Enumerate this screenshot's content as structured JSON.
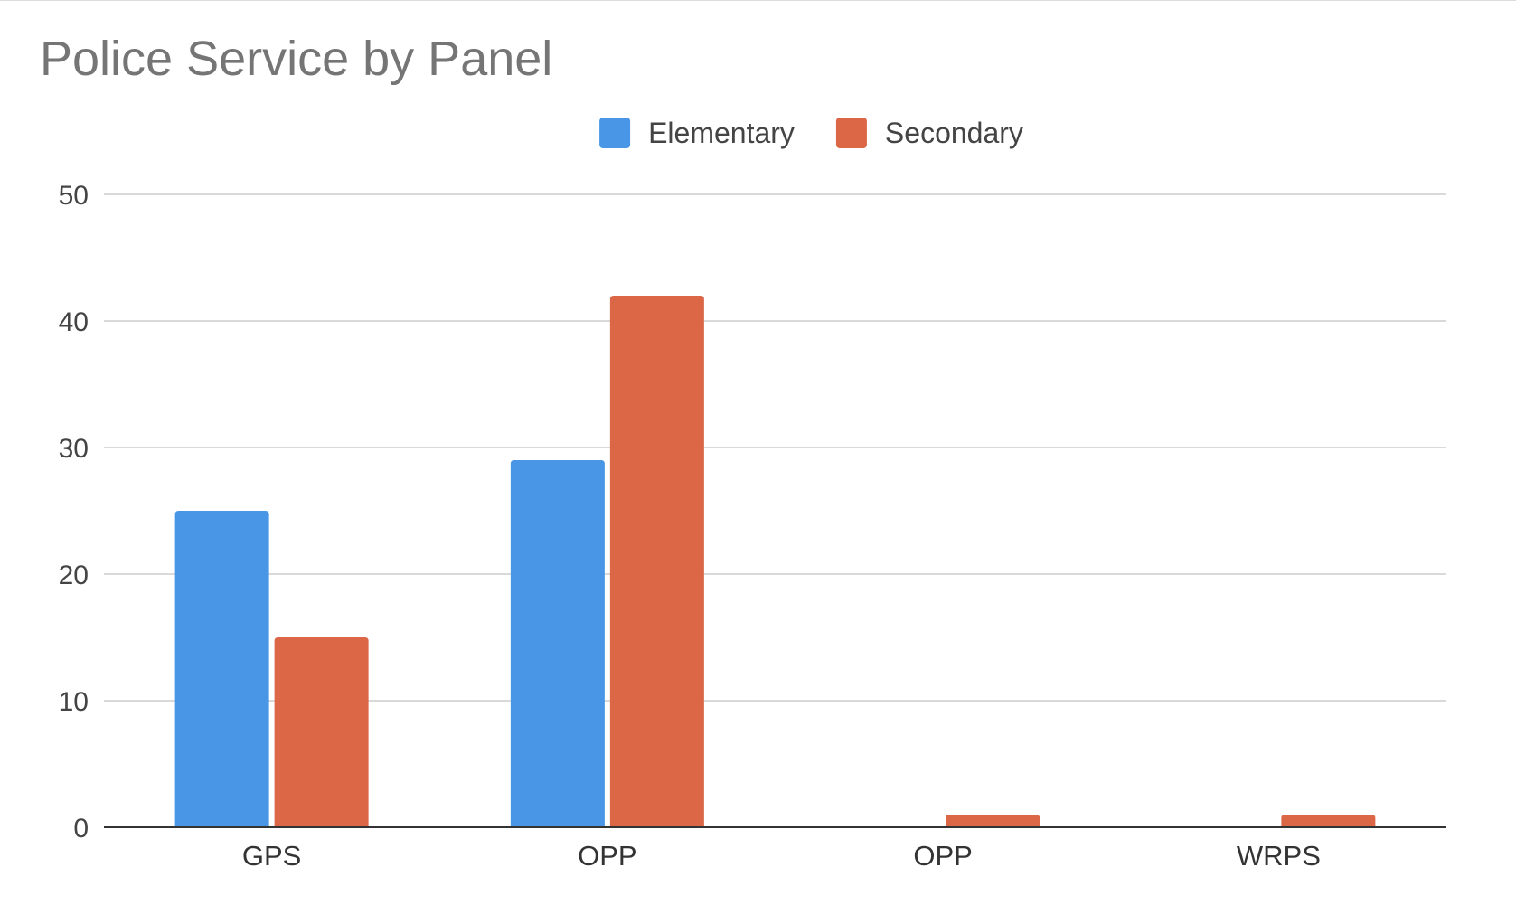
{
  "chart_data": {
    "type": "bar",
    "title": "Police Service by Panel",
    "xlabel": "",
    "ylabel": "",
    "categories": [
      "GPS",
      "OPP",
      "OPP",
      "WRPS"
    ],
    "series": [
      {
        "name": "Elementary",
        "color": "#4a96e6",
        "values": [
          25,
          29,
          0,
          0
        ]
      },
      {
        "name": "Secondary",
        "color": "#db6747",
        "values": [
          15,
          42,
          1,
          1
        ]
      }
    ],
    "ylim": [
      0,
      50
    ],
    "yticks": [
      0,
      10,
      20,
      30,
      40,
      50
    ],
    "grid": true,
    "legend_position": "top-center"
  }
}
